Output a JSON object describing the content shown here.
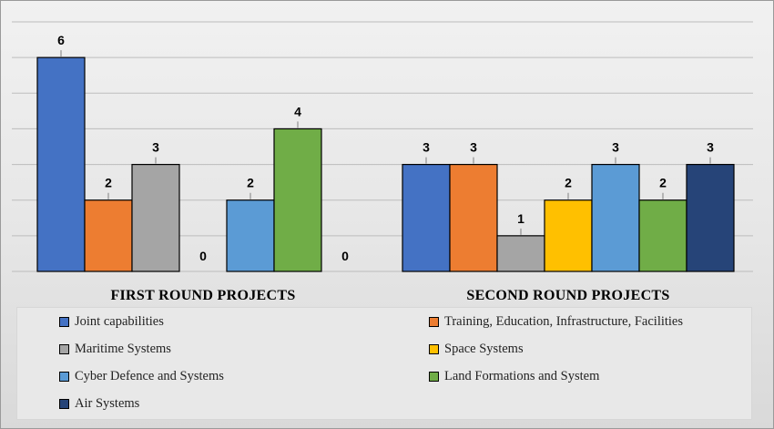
{
  "chart_data": {
    "type": "bar",
    "ylim": [
      0,
      7
    ],
    "grid": true,
    "legend_position": "bottom",
    "groups": [
      {
        "label": "FIRST ROUND PROJECTS",
        "values": [
          6,
          2,
          3,
          0,
          2,
          4,
          0
        ],
        "labels": [
          "6",
          "2",
          "3",
          "0",
          "2",
          "4",
          "0"
        ]
      },
      {
        "label": "SECOND ROUND PROJECTS",
        "values": [
          3,
          3,
          1,
          2,
          3,
          2,
          3
        ],
        "labels": [
          "3",
          "3",
          "1",
          "2",
          "3",
          "2",
          "3"
        ]
      }
    ],
    "series": [
      {
        "name": "Joint capabilities",
        "color": "#4472c4"
      },
      {
        "name": "Training, Education, Infrastructure, Facilities",
        "color": "#ed7d31"
      },
      {
        "name": "Maritime Systems",
        "color": "#a5a5a5"
      },
      {
        "name": "Space Systems",
        "color": "#ffc000"
      },
      {
        "name": "Cyber Defence and Systems",
        "color": "#5b9bd5"
      },
      {
        "name": "Land Formations and System",
        "color": "#70ad47"
      },
      {
        "name": "Air Systems",
        "color": "#264478"
      }
    ]
  }
}
